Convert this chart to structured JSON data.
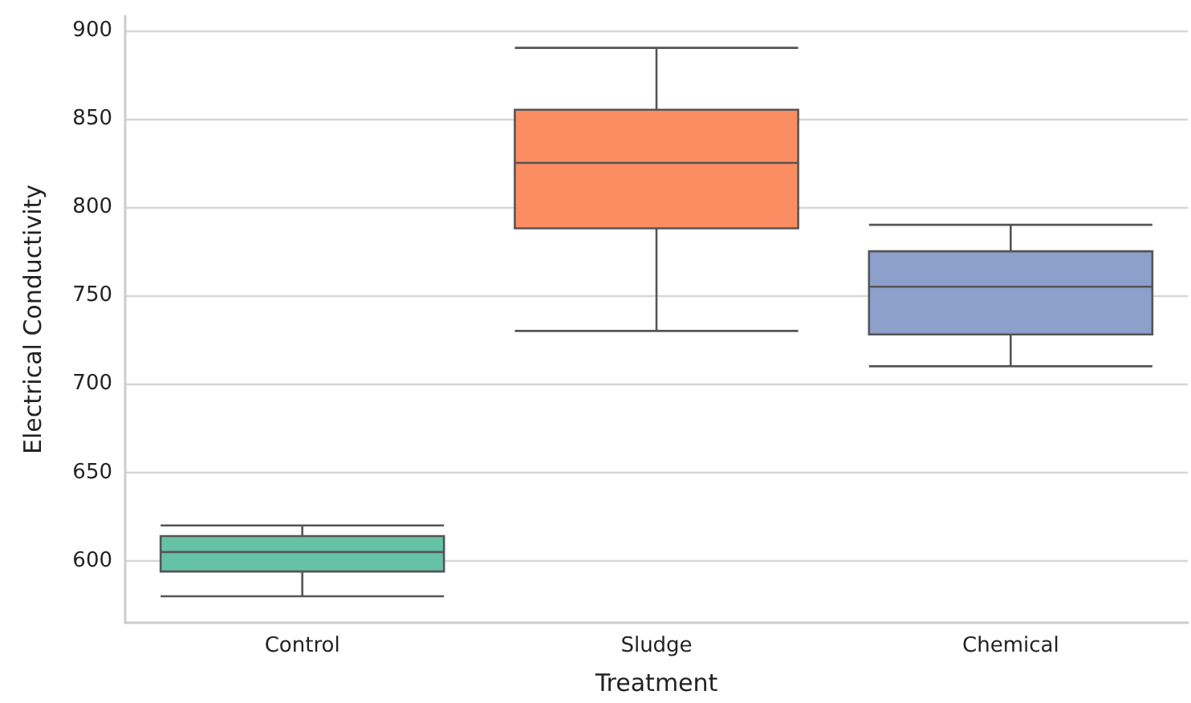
{
  "chart_data": {
    "type": "box",
    "xlabel": "Treatment",
    "ylabel": "Electrical Conductivity",
    "categories": [
      "Control",
      "Sludge",
      "Chemical"
    ],
    "boxes": [
      {
        "low": 580,
        "q1": 594,
        "median": 605,
        "q3": 614,
        "high": 620
      },
      {
        "low": 730,
        "q1": 788,
        "median": 825,
        "q3": 855,
        "high": 890
      },
      {
        "low": 710,
        "q1": 728,
        "median": 755,
        "q3": 775,
        "high": 790
      }
    ],
    "colors": [
      "#66c2a5",
      "#fc8d62",
      "#8da0cb"
    ],
    "ylim": [
      565,
      908
    ],
    "yticks": [
      600,
      650,
      700,
      750,
      800,
      850,
      900
    ],
    "grid": "y"
  }
}
